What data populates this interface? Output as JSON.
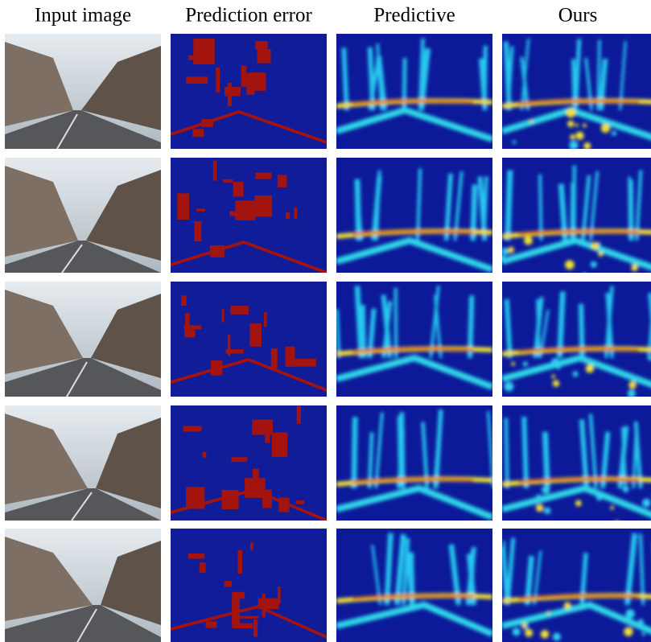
{
  "header": {
    "columns": [
      "Input image",
      "Prediction error",
      "Predictive",
      "Ours"
    ]
  }
}
